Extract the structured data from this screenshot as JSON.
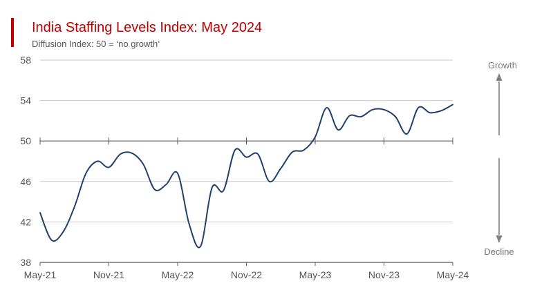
{
  "title": "India Staffing Levels Index: May 2024",
  "subtitle": "Diffusion Index: 50 = ‘no growth’",
  "colors": {
    "accent": "#c00000",
    "line": "#1f3f6e",
    "grid": "#c8c8c8",
    "axis": "#595959",
    "arrow": "#808080"
  },
  "side_labels": {
    "growth": "Growth",
    "decline": "Decline"
  },
  "chart_data": {
    "type": "line",
    "title": "India Staffing Levels Index: May 2024",
    "subtitle": "Diffusion Index: 50 = ‘no growth’",
    "xlabel": "",
    "ylabel": "",
    "ylim": [
      38,
      58
    ],
    "yticks": [
      38,
      42,
      46,
      50,
      54,
      58
    ],
    "baseline": 50,
    "grid": true,
    "legend": "none",
    "xtick_labels": [
      "May-21",
      "Nov-21",
      "May-22",
      "Nov-22",
      "May-23",
      "Nov-23",
      "May-24"
    ],
    "series": [
      {
        "x": [
          "May-21",
          "Jun-21",
          "Jul-21",
          "Aug-21",
          "Sep-21",
          "Oct-21",
          "Nov-21",
          "Dec-21",
          "Jan-22",
          "Feb-22",
          "Mar-22",
          "Apr-22",
          "May-22",
          "Jun-22",
          "Jul-22",
          "Aug-22",
          "Sep-22",
          "Oct-22",
          "Nov-22",
          "Dec-22",
          "Jan-23",
          "Feb-23",
          "Mar-23",
          "Apr-23",
          "May-23",
          "Jun-23",
          "Jul-23",
          "Aug-23",
          "Sep-23",
          "Oct-23",
          "Nov-23",
          "Dec-23",
          "Jan-24",
          "Feb-24",
          "Mar-24",
          "Apr-24",
          "May-24"
        ],
        "values": [
          42.9,
          40.2,
          41.0,
          43.5,
          46.8,
          48.0,
          47.4,
          48.7,
          48.8,
          47.7,
          45.2,
          45.7,
          46.8,
          41.8,
          39.6,
          45.4,
          45.1,
          49.1,
          48.4,
          48.7,
          46.0,
          47.3,
          48.9,
          49.1,
          50.4,
          53.3,
          51.1,
          52.5,
          52.4,
          53.1,
          53.1,
          52.4,
          50.7,
          53.3,
          52.8,
          53.0,
          53.6
        ]
      }
    ]
  }
}
